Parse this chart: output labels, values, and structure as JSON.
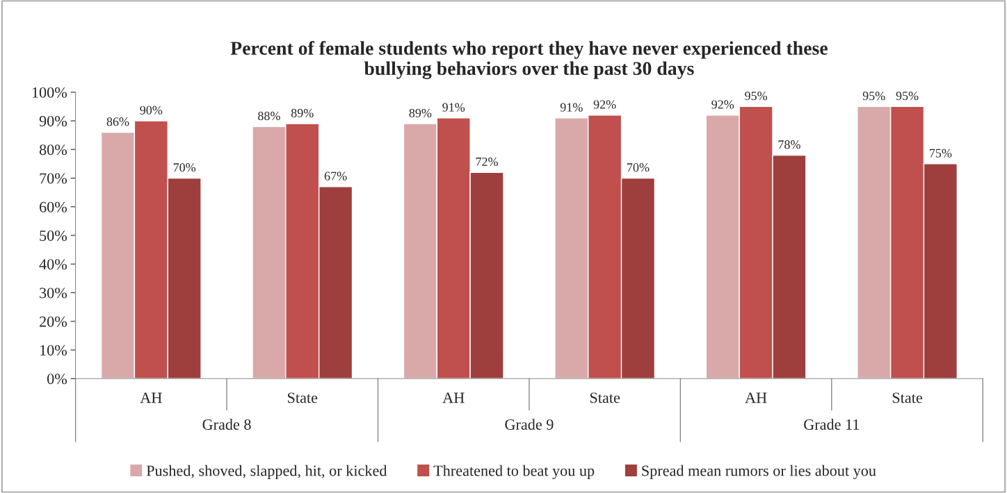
{
  "chart_data": {
    "type": "bar",
    "title": "Percent of female students who report they have never experienced these\nbullying behaviors over the past 30 days",
    "categories": [
      "AH",
      "State",
      "AH",
      "State",
      "AH",
      "State"
    ],
    "series": [
      {
        "name": "Pushed, shoved, slapped, hit, or kicked",
        "color": "#d9a9a9",
        "values": [
          86,
          88,
          89,
          91,
          92,
          95
        ],
        "value_labels": [
          "86%",
          "88%",
          "89%",
          "91%",
          "92%",
          "95%"
        ]
      },
      {
        "name": "Threatened to beat you up",
        "color": "#c0504d",
        "values": [
          90,
          89,
          91,
          92,
          95,
          95
        ],
        "value_labels": [
          "90%",
          "89%",
          "91%",
          "92%",
          "95%",
          "95%"
        ]
      },
      {
        "name": "Spread mean rumors or lies about you",
        "color": "#9e3f3d",
        "values": [
          70,
          67,
          72,
          70,
          78,
          75
        ],
        "value_labels": [
          "70%",
          "67%",
          "72%",
          "70%",
          "78%",
          "75%"
        ]
      }
    ],
    "annotations": [
      "Grade 8",
      "Grade 9",
      "Grade 11"
    ],
    "ylim": [
      0,
      100
    ],
    "yticks": [
      {
        "value": 0,
        "label": "0%"
      },
      {
        "value": 10,
        "label": "10%"
      },
      {
        "value": 20,
        "label": "20%"
      },
      {
        "value": 30,
        "label": "30%"
      },
      {
        "value": 40,
        "label": "40%"
      },
      {
        "value": 50,
        "label": "50%"
      },
      {
        "value": 60,
        "label": "60%"
      },
      {
        "value": 70,
        "label": "70%"
      },
      {
        "value": 80,
        "label": "80%"
      },
      {
        "value": 90,
        "label": "90%"
      },
      {
        "value": 100,
        "label": "100%"
      }
    ],
    "grid": false,
    "legend": "bottom"
  }
}
